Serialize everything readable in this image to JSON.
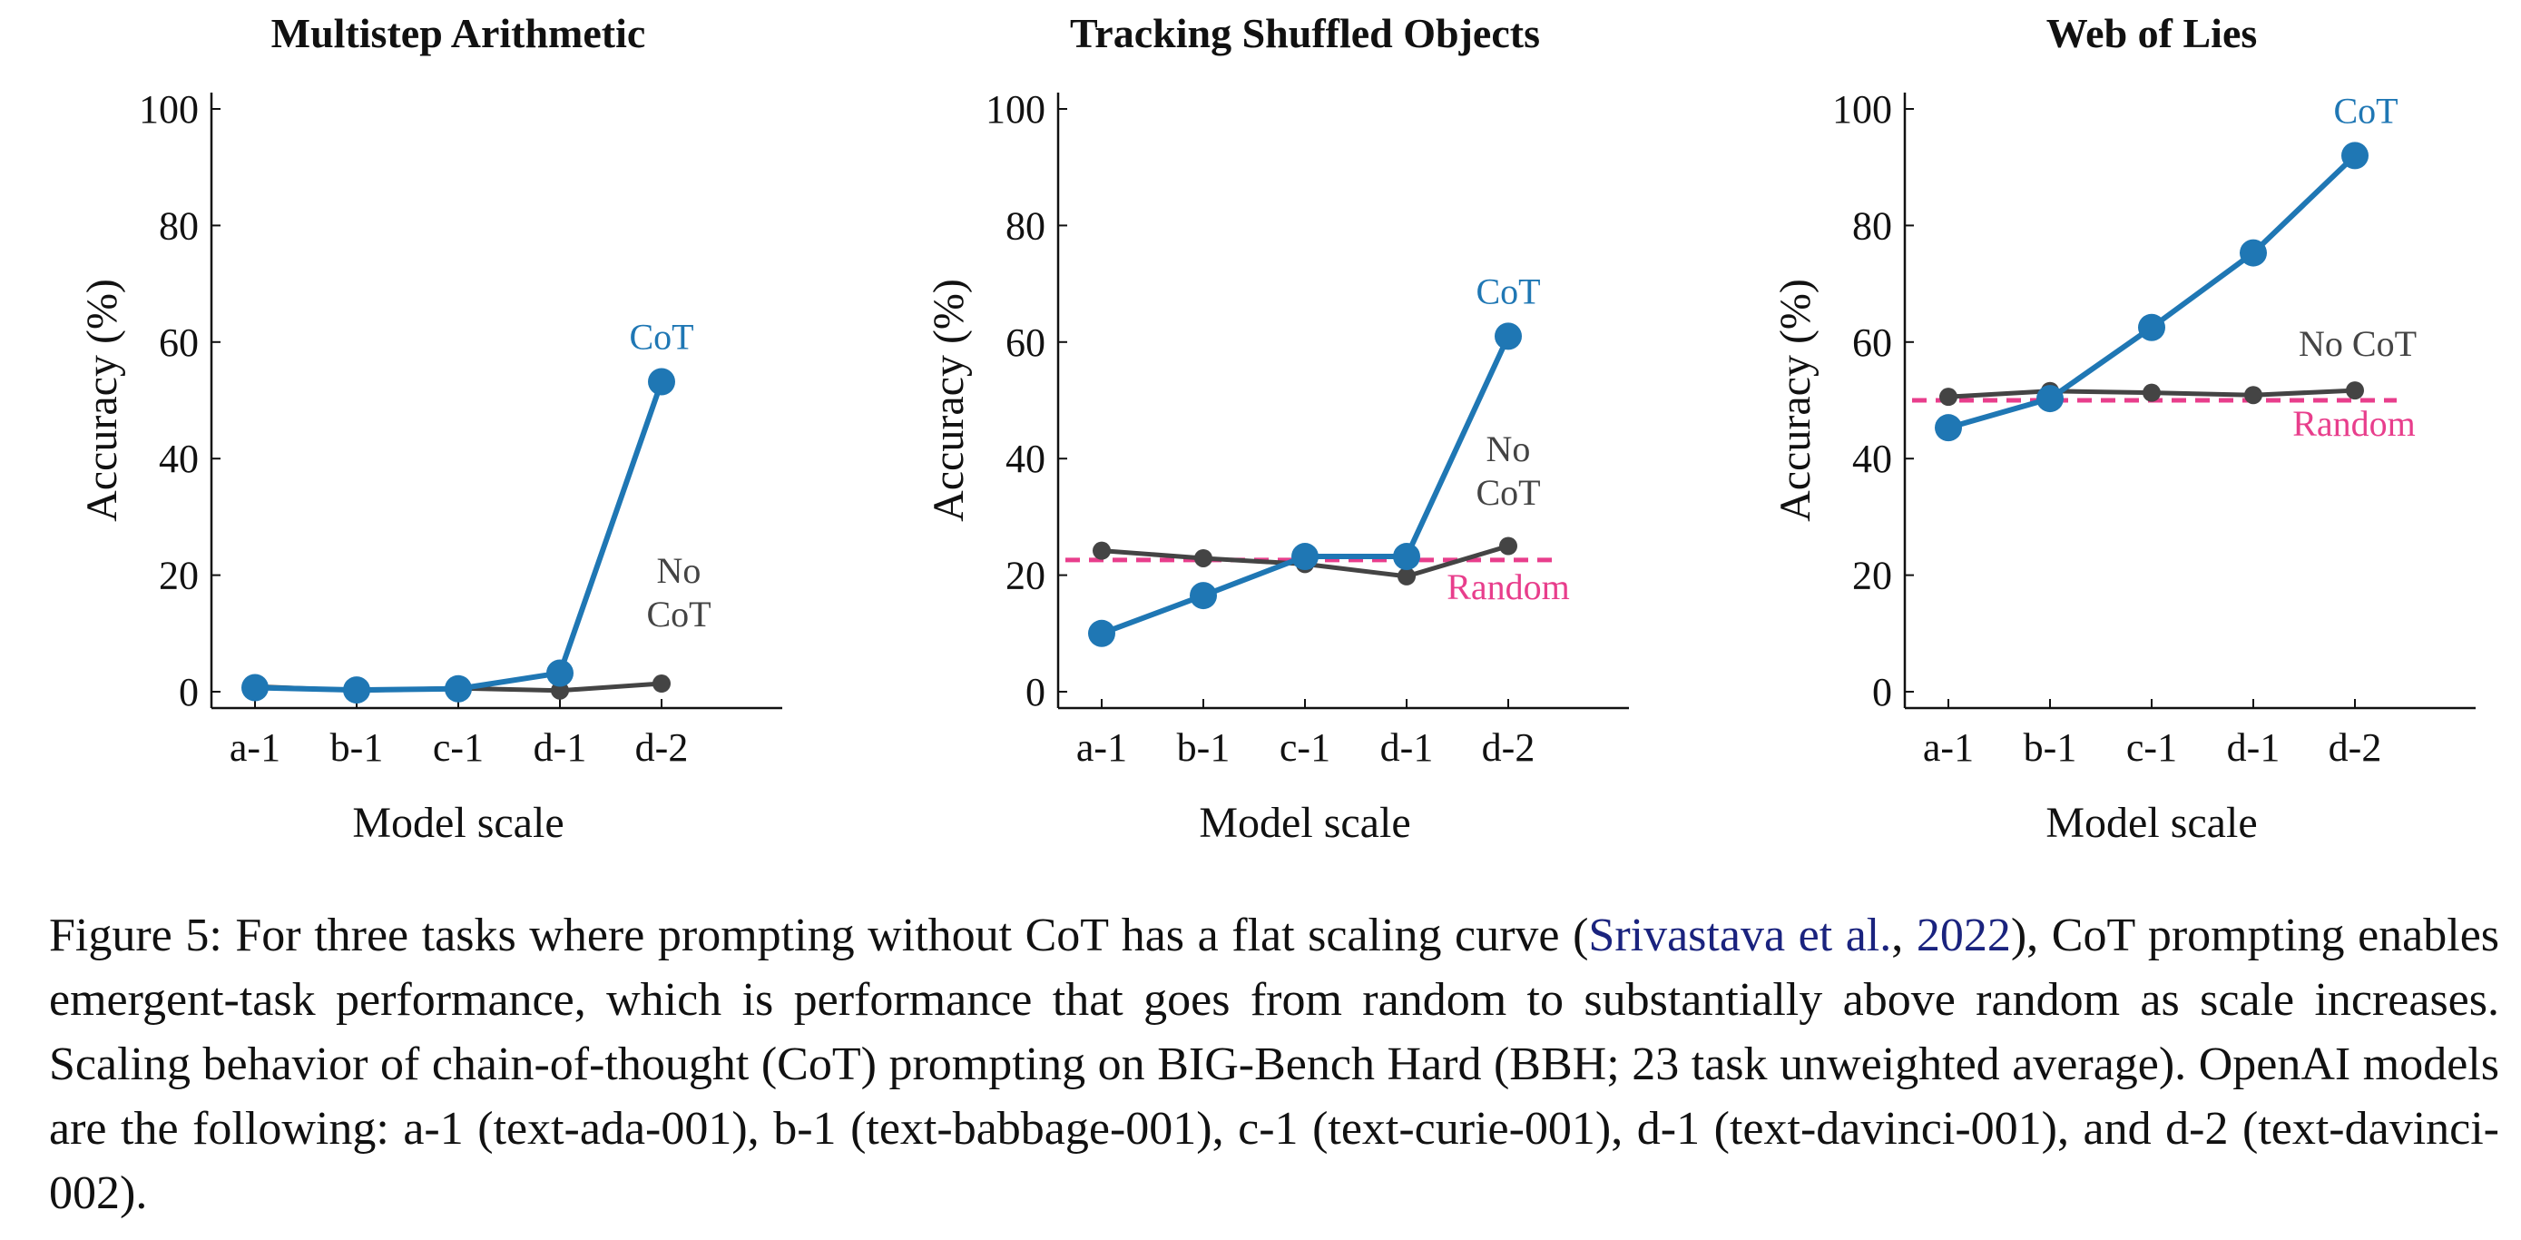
{
  "colors": {
    "cot": "#1f77b4",
    "nocot": "#444444",
    "random": "#e83e8c",
    "axis": "#111111"
  },
  "chart_data": [
    {
      "type": "line",
      "title": "Multistep Arithmetic",
      "xlabel": "Model scale",
      "ylabel": "Accuracy (%)",
      "categories": [
        "a-1",
        "b-1",
        "c-1",
        "d-1",
        "d-2"
      ],
      "ylim": [
        0,
        100
      ],
      "yticks": [
        0,
        20,
        40,
        60,
        80,
        100
      ],
      "grid": false,
      "series": [
        {
          "key": "cot",
          "name": "CoT",
          "values": [
            0.7,
            0.3,
            0.5,
            3.2,
            53.2
          ]
        },
        {
          "key": "nocot",
          "name": "No CoT",
          "values": [
            0.9,
            0.2,
            0.6,
            0.2,
            1.4
          ]
        }
      ],
      "random": null,
      "labels": {
        "cot": "CoT",
        "nocot": [
          "No",
          "CoT"
        ]
      }
    },
    {
      "type": "line",
      "title": "Tracking Shuffled Objects",
      "xlabel": "Model scale",
      "ylabel": "Accuracy (%)",
      "categories": [
        "a-1",
        "b-1",
        "c-1",
        "d-1",
        "d-2"
      ],
      "ylim": [
        0,
        100
      ],
      "yticks": [
        0,
        20,
        40,
        60,
        80,
        100
      ],
      "grid": false,
      "series": [
        {
          "key": "cot",
          "name": "CoT",
          "values": [
            10.0,
            16.5,
            23.2,
            23.2,
            61.0
          ]
        },
        {
          "key": "nocot",
          "name": "No CoT",
          "values": [
            24.2,
            22.9,
            21.9,
            19.8,
            25.0
          ]
        }
      ],
      "random": 22.6,
      "labels": {
        "cot": "CoT",
        "nocot": [
          "No",
          "CoT"
        ],
        "random": "Random"
      }
    },
    {
      "type": "line",
      "title": "Web of Lies",
      "xlabel": "Model scale",
      "ylabel": "Accuracy (%)",
      "categories": [
        "a-1",
        "b-1",
        "c-1",
        "d-1",
        "d-2"
      ],
      "ylim": [
        0,
        100
      ],
      "yticks": [
        0,
        20,
        40,
        60,
        80,
        100
      ],
      "grid": false,
      "series": [
        {
          "key": "cot",
          "name": "CoT",
          "values": [
            45.3,
            50.3,
            62.5,
            75.3,
            92.0
          ]
        },
        {
          "key": "nocot",
          "name": "No CoT",
          "values": [
            50.6,
            51.6,
            51.3,
            50.9,
            51.7
          ]
        }
      ],
      "random": 50.0,
      "labels": {
        "cot": "CoT",
        "nocot": [
          "No CoT"
        ],
        "random": "Random"
      }
    }
  ],
  "caption": {
    "prefix": "Figure 5: For three tasks where prompting without CoT has a flat scaling curve (",
    "cite_author": "Srivastava et al.",
    "cite_sep": ", ",
    "cite_year": "2022",
    "suffix": "), CoT prompting enables emergent-task performance, which is performance that goes from random to substantially above random as scale increases. Scaling behavior of chain-of-thought (CoT) prompting on BIG-Bench Hard (BBH; 23 task unweighted average). OpenAI models are the following: a-1 (text-ada-001), b-1 (text-babbage-001), c-1 (text-curie-001), d-1 (text-davinci-001), and d-2 (text-davinci-002)."
  }
}
